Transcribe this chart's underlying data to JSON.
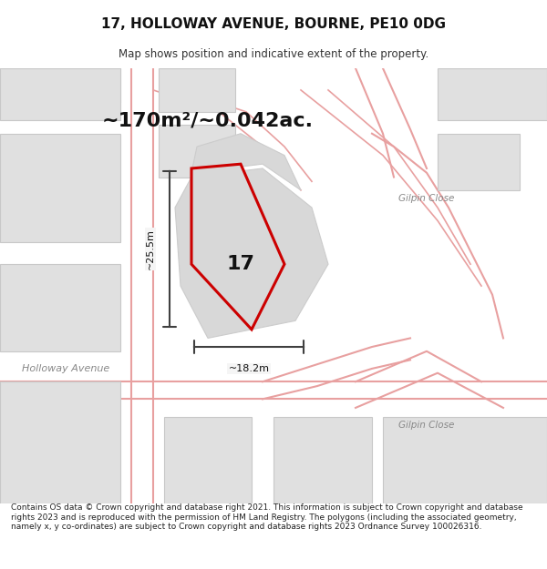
{
  "title_line1": "17, HOLLOWAY AVENUE, BOURNE, PE10 0DG",
  "title_line2": "Map shows position and indicative extent of the property.",
  "area_text": "~170m²/~0.042ac.",
  "label_17": "17",
  "label_holloway": "Holloway Avenue",
  "label_gilpin1": "Gilpin Close",
  "label_gilpin2": "Gilpin Close",
  "dim_width": "~18.2m",
  "dim_height": "~25.5m",
  "footer_text": "Contains OS data © Crown copyright and database right 2021. This information is subject to Crown copyright and database rights 2023 and is reproduced with the permission of HM Land Registry. The polygons (including the associated geometry, namely x, y co-ordinates) are subject to Crown copyright and database rights 2023 Ordnance Survey 100026316.",
  "bg_color": "#f0f0f0",
  "map_bg": "#f5f5f5",
  "road_color": "#ffffff",
  "building_fill": "#e0e0e0",
  "building_edge": "#c8c8c8",
  "red_outline": "#cc0000",
  "highlight_fill": "#d8d8d8",
  "road_line_color": "#e8a0a0",
  "dim_line_color": "#404040",
  "text_color": "#333333",
  "street_label_color": "#888888"
}
